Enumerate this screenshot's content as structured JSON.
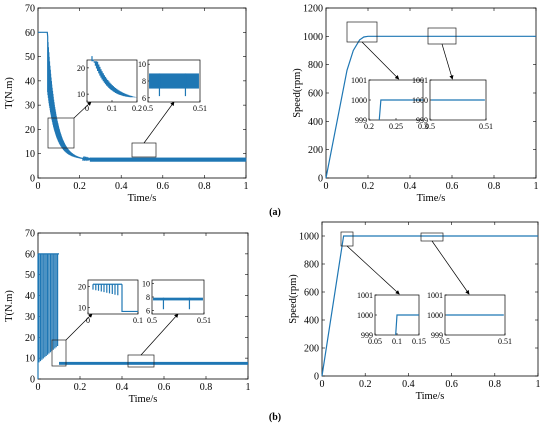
{
  "figure": {
    "caption_a": "(a)",
    "caption_b": "(b)"
  },
  "chart_data": [
    {
      "id": "a-torque",
      "type": "line",
      "xlabel": "Time/s",
      "ylabel": "T(N.m)",
      "xlim": [
        0,
        1
      ],
      "ylim": [
        0,
        70
      ],
      "xticks": [
        "0",
        "0.2",
        "0.4",
        "0.6",
        "0.8",
        "1"
      ],
      "yticks": [
        "0",
        "10",
        "20",
        "30",
        "40",
        "50",
        "60",
        "70"
      ],
      "series": [
        {
          "x": [
            0,
            0.02,
            0.04,
            0.05,
            0.06,
            0.08,
            0.1,
            0.12,
            0.14,
            0.16,
            0.18,
            0.2,
            0.25,
            0.3,
            1
          ],
          "y": [
            60,
            60,
            60,
            55,
            42,
            30,
            22,
            16,
            12,
            10,
            9,
            8,
            7.5,
            7.5,
            7.5
          ]
        }
      ],
      "insets": [
        {
          "xticks": [
            "0",
            "0.1",
            "0.2"
          ],
          "yticks": [
            "10",
            "20"
          ],
          "ylim": [
            7,
            23
          ]
        },
        {
          "xticks": [
            "0.5",
            "0.51"
          ],
          "yticks": [
            "6",
            "8",
            "10"
          ],
          "ylim": [
            5.5,
            10.5
          ]
        }
      ]
    },
    {
      "id": "a-speed",
      "type": "line",
      "xlabel": "Time/s",
      "ylabel": "Speed(rpm)",
      "xlim": [
        0,
        1
      ],
      "ylim": [
        0,
        1200
      ],
      "xticks": [
        "0",
        "0.2",
        "0.4",
        "0.6",
        "0.8",
        "1"
      ],
      "yticks": [
        "0",
        "200",
        "400",
        "600",
        "800",
        "1000",
        "1200"
      ],
      "series": [
        {
          "x": [
            0,
            0.05,
            0.1,
            0.13,
            0.16,
            0.18,
            0.2,
            1
          ],
          "y": [
            0,
            380,
            760,
            900,
            975,
            995,
            1000,
            1000
          ]
        }
      ],
      "insets": [
        {
          "xticks": [
            "0.2",
            "0.25",
            "0.3"
          ],
          "yticks": [
            "999",
            "1000",
            "1001"
          ],
          "ylim": [
            999,
            1001
          ]
        },
        {
          "xticks": [
            "0.5",
            "0.51"
          ],
          "yticks": [
            "999",
            "1000",
            "1001"
          ],
          "ylim": [
            999,
            1001
          ]
        }
      ]
    },
    {
      "id": "b-torque",
      "type": "line",
      "xlabel": "Time/s",
      "ylabel": "T(N.m)",
      "xlim": [
        0,
        1
      ],
      "ylim": [
        0,
        70
      ],
      "xticks": [
        "0",
        "0.2",
        "0.4",
        "0.6",
        "0.8",
        "1"
      ],
      "yticks": [
        "0",
        "10",
        "20",
        "30",
        "40",
        "50",
        "60",
        "70"
      ],
      "series": [
        {
          "x": [
            0,
            0.1,
            0.1,
            1
          ],
          "y": [
            60,
            60,
            7.5,
            7.5
          ]
        }
      ],
      "insets": [
        {
          "xticks": [
            "0",
            "0.1"
          ],
          "yticks": [
            "10",
            "20"
          ],
          "ylim": [
            7,
            23
          ]
        },
        {
          "xticks": [
            "0.5",
            "0.51"
          ],
          "yticks": [
            "6",
            "8",
            "10"
          ],
          "ylim": [
            5.5,
            10.5
          ]
        }
      ]
    },
    {
      "id": "b-speed",
      "type": "line",
      "xlabel": "Time/s",
      "ylabel": "Speed(rpm)",
      "xlim": [
        0,
        1
      ],
      "ylim": [
        0,
        1100
      ],
      "xticks": [
        "0",
        "0.2",
        "0.4",
        "0.6",
        "0.8",
        "1"
      ],
      "yticks": [
        "0",
        "200",
        "400",
        "600",
        "800",
        "1000"
      ],
      "series": [
        {
          "x": [
            0,
            0.1,
            1
          ],
          "y": [
            0,
            1000,
            1000
          ]
        }
      ],
      "insets": [
        {
          "xticks": [
            "0.05",
            "0.1",
            "0.15"
          ],
          "yticks": [
            "999",
            "1000",
            "1001"
          ],
          "ylim": [
            999,
            1001
          ]
        },
        {
          "xticks": [
            "0.5",
            "0.51"
          ],
          "yticks": [
            "999",
            "1000",
            "1001"
          ],
          "ylim": [
            999,
            1001
          ]
        }
      ]
    }
  ]
}
